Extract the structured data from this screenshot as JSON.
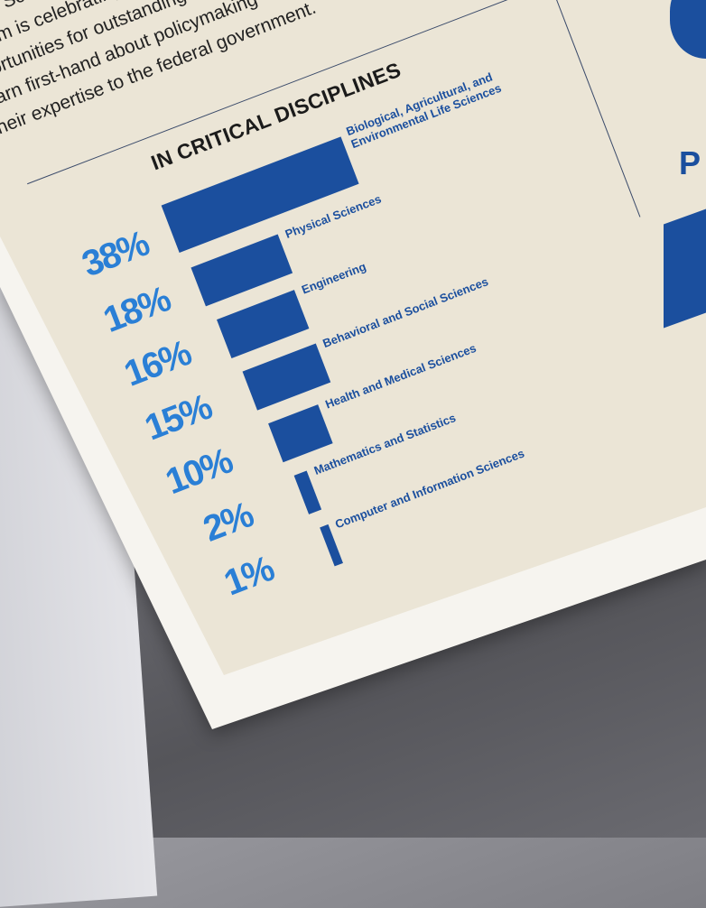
{
  "intro_text": [
    "AAAS Sci",
    "ogram is celebrating",
    "pportunities for outstanding",
    "learn first-hand about policymaking",
    "their expertise to the federal government."
  ],
  "side_letter": "P",
  "chart_data": {
    "type": "bar",
    "orientation": "horizontal",
    "title": "IN CRITICAL DISCIPLINES",
    "categories": [
      "Biological, Agricultural, and Environmental Life Sciences",
      "Physical Sciences",
      "Engineering",
      "Behavioral and Social Sciences",
      "Health and Medical Sciences",
      "Mathematics and Statistics",
      "Computer and Information Sciences"
    ],
    "values": [
      38,
      18,
      16,
      15,
      10,
      2,
      1
    ],
    "value_labels": [
      "38%",
      "18%",
      "16%",
      "15%",
      "10%",
      "2%",
      "1%"
    ],
    "colors": {
      "bar": "#1b4f9e",
      "value_label": "#2a7fd6",
      "category_label": "#1b4f9e"
    }
  }
}
